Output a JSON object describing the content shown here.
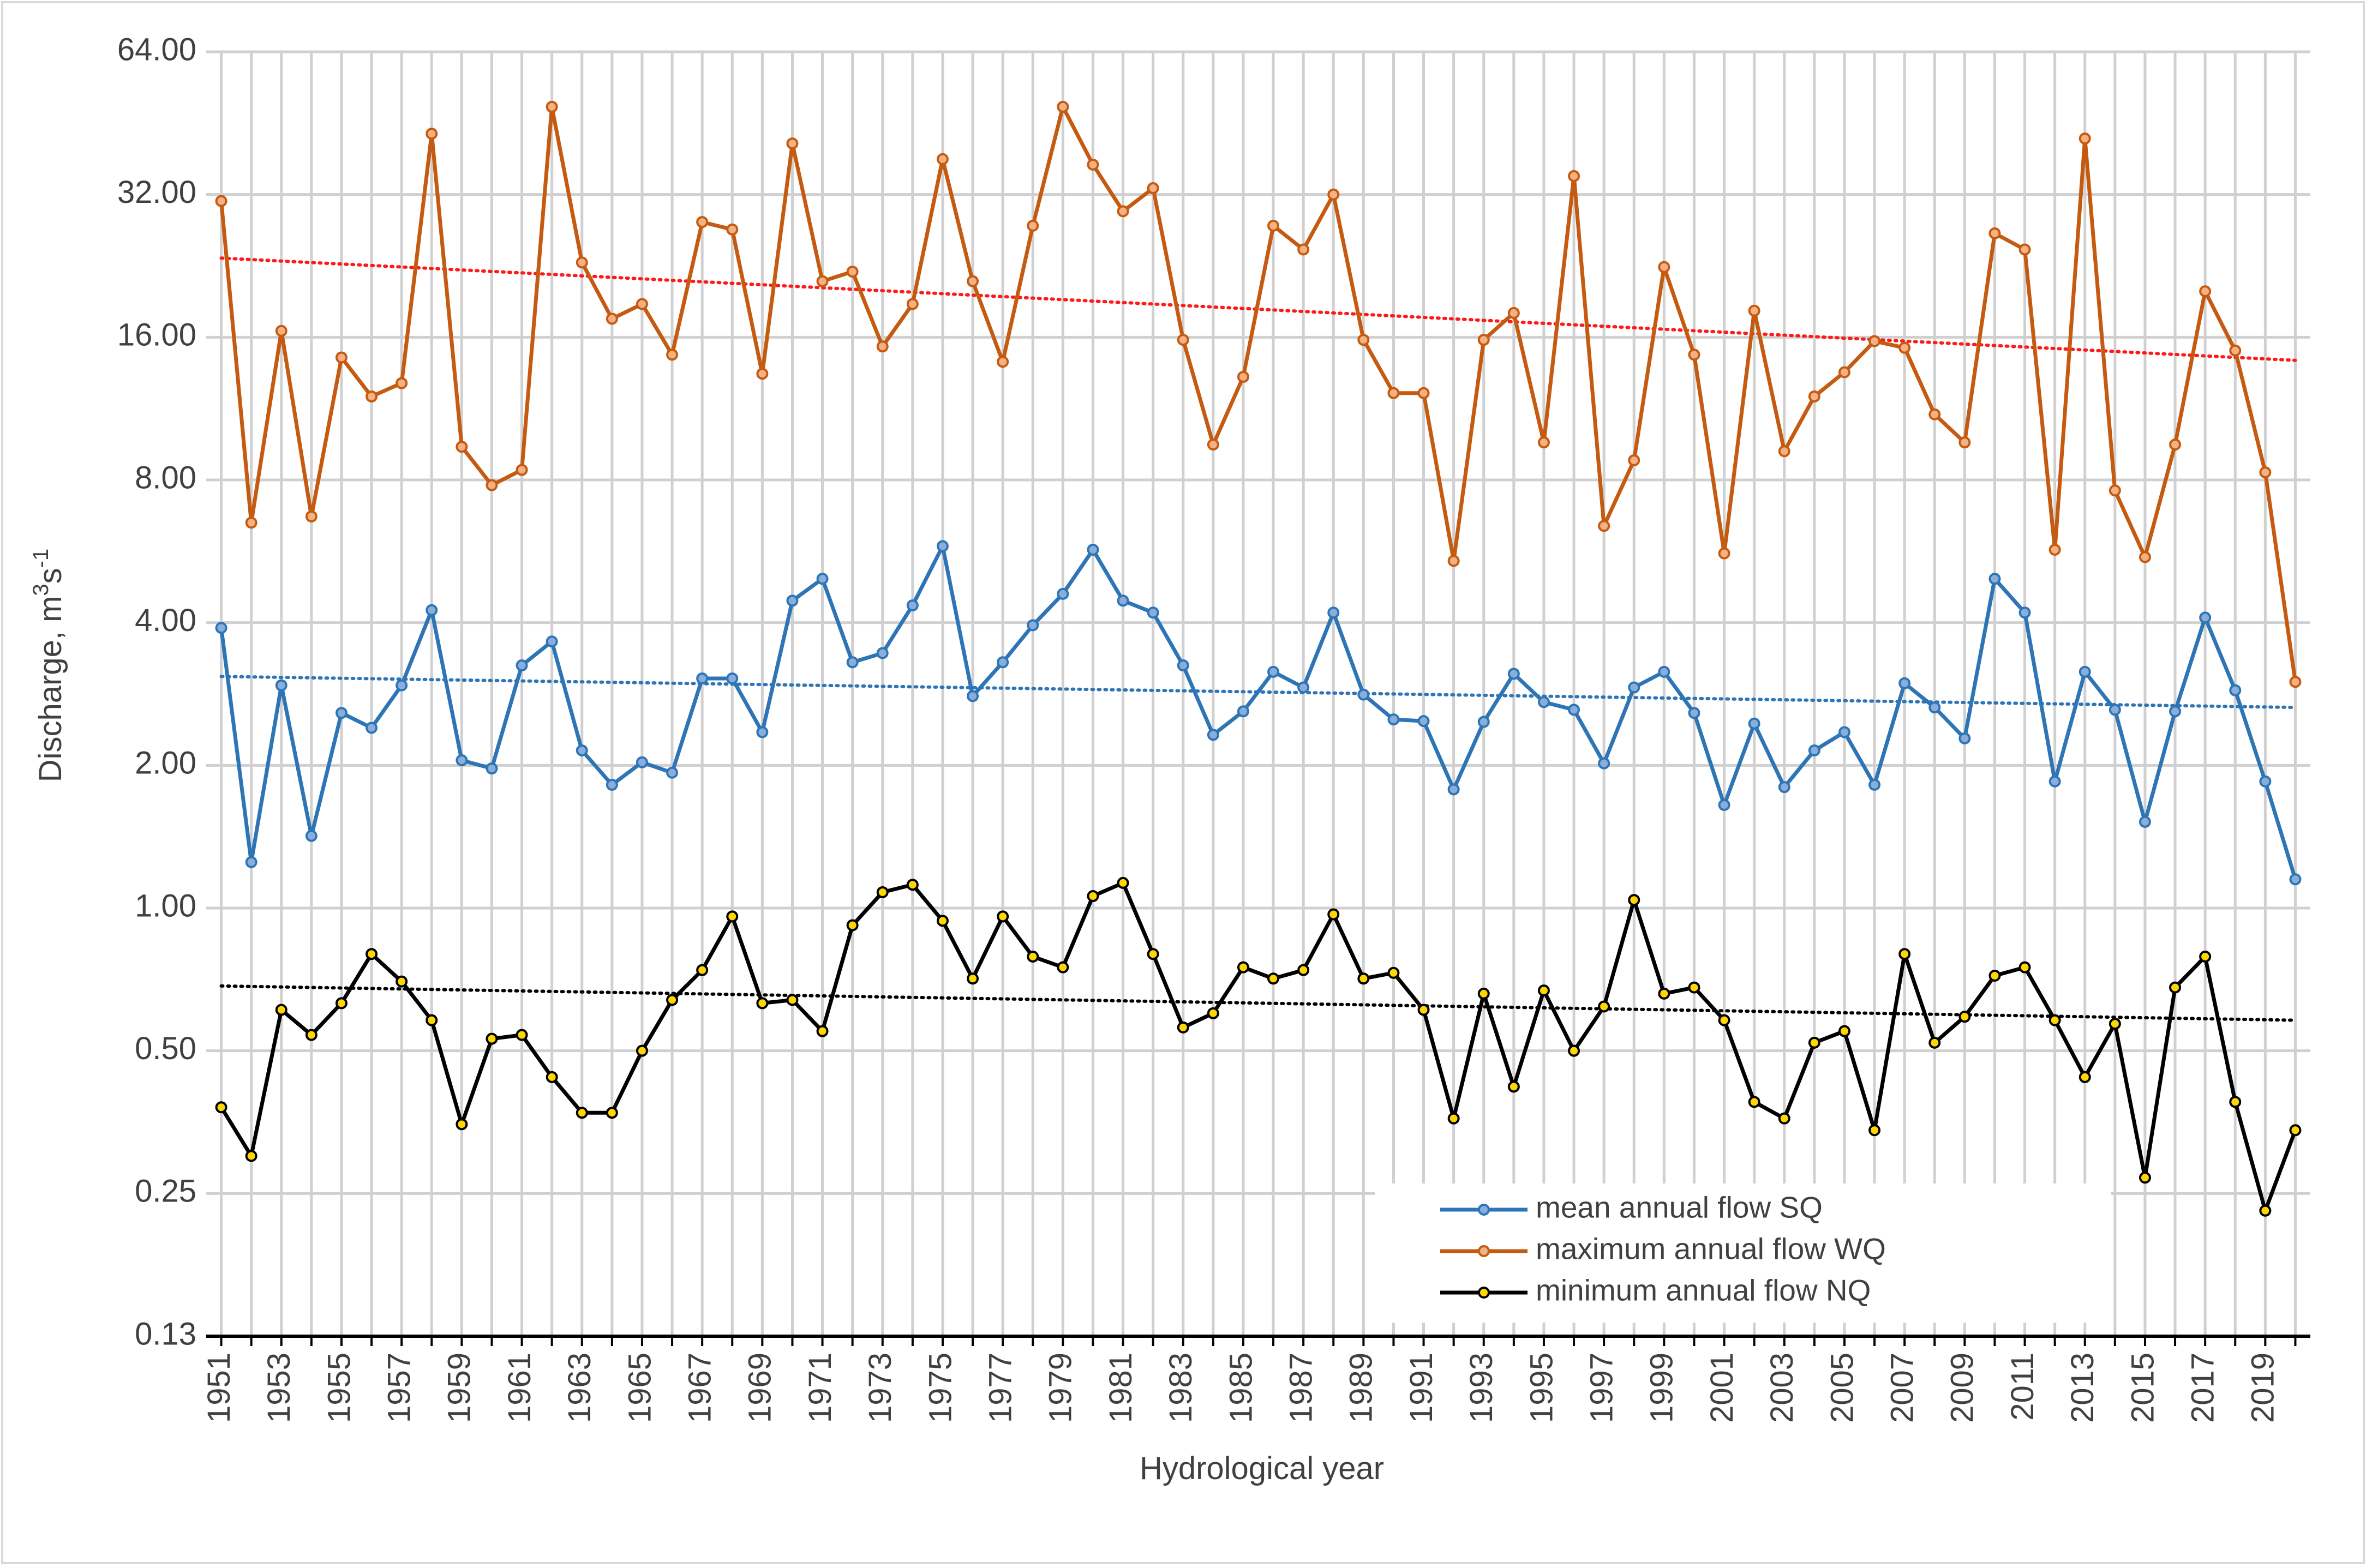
{
  "chart_data": {
    "type": "line",
    "yscale": "log2",
    "xlabel": "Hydrological year",
    "ylabel": "Discharge, m³s⁻¹",
    "ylabel_parts": {
      "base": "Discharge, m",
      "sup1": "3",
      "mid": "s",
      "sup2": "-1"
    },
    "yticks": [
      0.13,
      0.25,
      0.5,
      1.0,
      2.0,
      4.0,
      8.0,
      16.0,
      32.0,
      64.0
    ],
    "ytick_labels": [
      "0.13",
      "0.25",
      "0.50",
      "1.00",
      "2.00",
      "4.00",
      "8.00",
      "16.00",
      "32.00",
      "64.00"
    ],
    "ylim": [
      0.125,
      64
    ],
    "xlim": [
      1950.5,
      2020.5
    ],
    "xtick_labels": [
      "1951",
      "1953",
      "1955",
      "1957",
      "1959",
      "1961",
      "1963",
      "1965",
      "1967",
      "1969",
      "1971",
      "1973",
      "1975",
      "1977",
      "1979",
      "1981",
      "1983",
      "1985",
      "1987",
      "1989",
      "1991",
      "1993",
      "1995",
      "1997",
      "1999",
      "2001",
      "2003",
      "2005",
      "2007",
      "2009",
      "2011",
      "2013",
      "2015",
      "2017",
      "2019"
    ],
    "grid": true,
    "legend_position": "bottom-right",
    "x": [
      1951,
      1952,
      1953,
      1954,
      1955,
      1956,
      1957,
      1958,
      1959,
      1960,
      1961,
      1962,
      1963,
      1964,
      1965,
      1966,
      1967,
      1968,
      1969,
      1970,
      1971,
      1972,
      1973,
      1974,
      1975,
      1976,
      1977,
      1978,
      1979,
      1980,
      1981,
      1982,
      1983,
      1984,
      1985,
      1986,
      1987,
      1988,
      1989,
      1990,
      1991,
      1992,
      1993,
      1994,
      1995,
      1996,
      1997,
      1998,
      1999,
      2000,
      2001,
      2002,
      2003,
      2004,
      2005,
      2006,
      2007,
      2008,
      2009,
      2010,
      2011,
      2012,
      2013,
      2014,
      2015,
      2016,
      2017,
      2018,
      2019,
      2020
    ],
    "series": [
      {
        "name": "mean annual flow SQ",
        "color": "#2e75b6",
        "marker_fill": "#8aaedc",
        "values": [
          3.9,
          1.25,
          2.95,
          1.42,
          2.58,
          2.4,
          2.95,
          4.25,
          2.05,
          1.97,
          3.25,
          3.65,
          2.15,
          1.82,
          2.03,
          1.93,
          3.05,
          3.05,
          2.35,
          4.45,
          4.95,
          3.3,
          3.45,
          4.35,
          5.8,
          2.8,
          3.3,
          3.95,
          4.6,
          5.7,
          4.45,
          4.2,
          3.25,
          2.32,
          2.6,
          3.15,
          2.92,
          4.2,
          2.82,
          2.5,
          2.48,
          1.78,
          2.47,
          3.12,
          2.72,
          2.62,
          2.02,
          2.92,
          3.15,
          2.58,
          1.65,
          2.45,
          1.8,
          2.15,
          2.35,
          1.82,
          2.98,
          2.65,
          2.28,
          4.95,
          4.2,
          1.85,
          3.15,
          2.62,
          1.52,
          2.6,
          4.1,
          2.88,
          1.85,
          1.15
        ],
        "trend": [
          3.08,
          2.65
        ]
      },
      {
        "name": "maximum annual flow WQ",
        "color": "#c55a11",
        "marker_fill": "#f4b183",
        "values": [
          31,
          6.5,
          16.5,
          6.7,
          14.5,
          12,
          12.8,
          43,
          9.4,
          7.8,
          8.4,
          49,
          23,
          17.5,
          18.8,
          14.7,
          28,
          27,
          13.4,
          41,
          21,
          22,
          15.3,
          18.8,
          38,
          21,
          14.2,
          27.5,
          49,
          37,
          29.5,
          33,
          15.8,
          9.5,
          13.2,
          27.5,
          24.5,
          32,
          15.8,
          12.2,
          12.2,
          5.4,
          15.8,
          18,
          9.6,
          35,
          6.4,
          8.8,
          22.5,
          14.7,
          5.6,
          18.2,
          9.2,
          12,
          13.5,
          15.7,
          15.2,
          11,
          9.6,
          26.5,
          24.5,
          5.7,
          42,
          7.6,
          5.5,
          9.5,
          20,
          15,
          8.3,
          3.0
        ],
        "trend": [
          23.5,
          14.3
        ]
      },
      {
        "name": "minimum annual flow NQ",
        "color": "#000000",
        "marker_fill": "#ffd700",
        "values": [
          0.38,
          0.3,
          0.61,
          0.54,
          0.63,
          0.8,
          0.7,
          0.58,
          0.35,
          0.53,
          0.54,
          0.44,
          0.37,
          0.37,
          0.5,
          0.64,
          0.74,
          0.96,
          0.63,
          0.64,
          0.55,
          0.92,
          1.08,
          1.12,
          0.94,
          0.71,
          0.96,
          0.79,
          0.75,
          1.06,
          1.13,
          0.8,
          0.56,
          0.6,
          0.75,
          0.71,
          0.74,
          0.97,
          0.71,
          0.73,
          0.61,
          0.36,
          0.66,
          0.42,
          0.67,
          0.5,
          0.62,
          1.04,
          0.66,
          0.68,
          0.58,
          0.39,
          0.36,
          0.52,
          0.55,
          0.34,
          0.8,
          0.52,
          0.59,
          0.72,
          0.75,
          0.58,
          0.44,
          0.57,
          0.27,
          0.68,
          0.79,
          0.39,
          0.23,
          0.34
        ],
        "trend": [
          0.685,
          0.58
        ]
      }
    ]
  }
}
